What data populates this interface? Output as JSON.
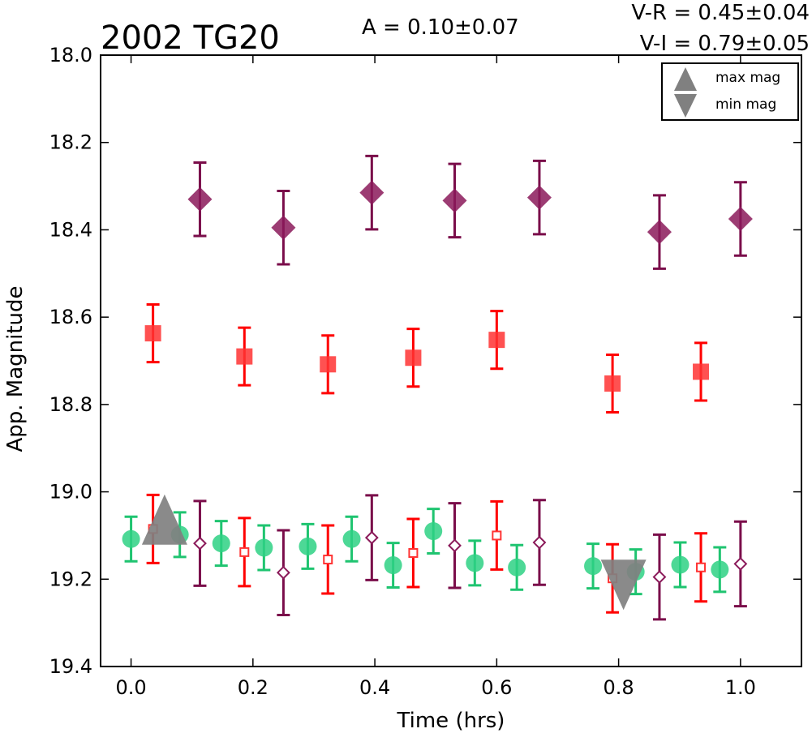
{
  "chart_data": {
    "type": "scatter",
    "title": "2002 TG20",
    "xlabel": "Time (hrs)",
    "ylabel": "App. Magnitude",
    "xlim": [
      -0.05,
      1.1
    ],
    "ylim": [
      18.0,
      19.4
    ],
    "y_inverted": true,
    "xticks": [
      0.0,
      0.2,
      0.4,
      0.6,
      0.8,
      1.0
    ],
    "xtick_labels": [
      "0.0",
      "0.2",
      "0.4",
      "0.6",
      "0.8",
      "1.0"
    ],
    "yticks": [
      18.0,
      18.2,
      18.4,
      18.6,
      18.8,
      19.0,
      19.2,
      19.4
    ],
    "ytick_labels": [
      "18.0",
      "18.2",
      "18.4",
      "18.6",
      "18.8",
      "19.0",
      "19.2",
      "19.4"
    ],
    "grid": false,
    "annotations": {
      "amplitude": "A  = 0.10±0.07",
      "vr": "V-R = 0.45±0.04",
      "vi": "V-I  = 0.79±0.05"
    },
    "legend": {
      "placement": "top-right",
      "entries": [
        {
          "label": "max mag",
          "marker": "triangle-up",
          "color": "#808080"
        },
        {
          "label": "min mag",
          "marker": "triangle-down",
          "color": "#808080"
        }
      ]
    },
    "series": [
      {
        "marker": "diamond",
        "filled": true,
        "color": "#8b1a5a",
        "errcolor": "#7a0d4a",
        "points": [
          {
            "x": 0.113,
            "y": 18.33,
            "err": 0.084
          },
          {
            "x": 0.25,
            "y": 18.395,
            "err": 0.084
          },
          {
            "x": 0.395,
            "y": 18.315,
            "err": 0.084
          },
          {
            "x": 0.531,
            "y": 18.333,
            "err": 0.084
          },
          {
            "x": 0.67,
            "y": 18.326,
            "err": 0.084
          },
          {
            "x": 0.867,
            "y": 18.405,
            "err": 0.084
          },
          {
            "x": 1.0,
            "y": 18.375,
            "err": 0.084
          }
        ]
      },
      {
        "marker": "square",
        "filled": true,
        "color": "#ff3333",
        "errcolor": "#ff0000",
        "points": [
          {
            "x": 0.036,
            "y": 18.637,
            "err": 0.066
          },
          {
            "x": 0.186,
            "y": 18.69,
            "err": 0.066
          },
          {
            "x": 0.323,
            "y": 18.708,
            "err": 0.066
          },
          {
            "x": 0.463,
            "y": 18.693,
            "err": 0.066
          },
          {
            "x": 0.6,
            "y": 18.652,
            "err": 0.066
          },
          {
            "x": 0.79,
            "y": 18.752,
            "err": 0.066
          },
          {
            "x": 0.935,
            "y": 18.725,
            "err": 0.066
          }
        ]
      },
      {
        "marker": "circle",
        "filled": true,
        "color": "#2ed184",
        "errcolor": "#1fc470",
        "points": [
          {
            "x": 0.0,
            "y": 19.108,
            "err": 0.051
          },
          {
            "x": 0.08,
            "y": 19.098,
            "err": 0.051
          },
          {
            "x": 0.148,
            "y": 19.118,
            "err": 0.051
          },
          {
            "x": 0.218,
            "y": 19.128,
            "err": 0.051
          },
          {
            "x": 0.29,
            "y": 19.125,
            "err": 0.051
          },
          {
            "x": 0.362,
            "y": 19.108,
            "err": 0.051
          },
          {
            "x": 0.43,
            "y": 19.168,
            "err": 0.051
          },
          {
            "x": 0.496,
            "y": 19.09,
            "err": 0.051
          },
          {
            "x": 0.564,
            "y": 19.163,
            "err": 0.051
          },
          {
            "x": 0.633,
            "y": 19.173,
            "err": 0.051
          },
          {
            "x": 0.758,
            "y": 19.17,
            "err": 0.051
          },
          {
            "x": 0.828,
            "y": 19.183,
            "err": 0.051
          },
          {
            "x": 0.901,
            "y": 19.167,
            "err": 0.051
          },
          {
            "x": 0.966,
            "y": 19.178,
            "err": 0.051
          }
        ]
      },
      {
        "marker": "square",
        "filled": false,
        "color": "#ff3333",
        "errcolor": "#ff0000",
        "points": [
          {
            "x": 0.036,
            "y": 19.085,
            "err": 0.078
          },
          {
            "x": 0.186,
            "y": 19.138,
            "err": 0.078
          },
          {
            "x": 0.323,
            "y": 19.155,
            "err": 0.078
          },
          {
            "x": 0.463,
            "y": 19.14,
            "err": 0.078
          },
          {
            "x": 0.6,
            "y": 19.1,
            "err": 0.078
          },
          {
            "x": 0.79,
            "y": 19.198,
            "err": 0.078
          },
          {
            "x": 0.935,
            "y": 19.173,
            "err": 0.078
          }
        ]
      },
      {
        "marker": "diamond",
        "filled": false,
        "color": "#8b1a5a",
        "errcolor": "#7a0d4a",
        "points": [
          {
            "x": 0.113,
            "y": 19.118,
            "err": 0.097
          },
          {
            "x": 0.25,
            "y": 19.185,
            "err": 0.097
          },
          {
            "x": 0.395,
            "y": 19.105,
            "err": 0.097
          },
          {
            "x": 0.531,
            "y": 19.123,
            "err": 0.097
          },
          {
            "x": 0.67,
            "y": 19.116,
            "err": 0.097
          },
          {
            "x": 0.867,
            "y": 19.195,
            "err": 0.097
          },
          {
            "x": 1.0,
            "y": 19.165,
            "err": 0.097
          }
        ]
      }
    ],
    "extrema_markers": [
      {
        "label": "max mag",
        "marker": "triangle-up",
        "x": 0.055,
        "y": 19.095,
        "color": "#808080"
      },
      {
        "label": "min mag",
        "marker": "triangle-down",
        "x": 0.808,
        "y": 19.185,
        "color": "#808080"
      }
    ]
  }
}
